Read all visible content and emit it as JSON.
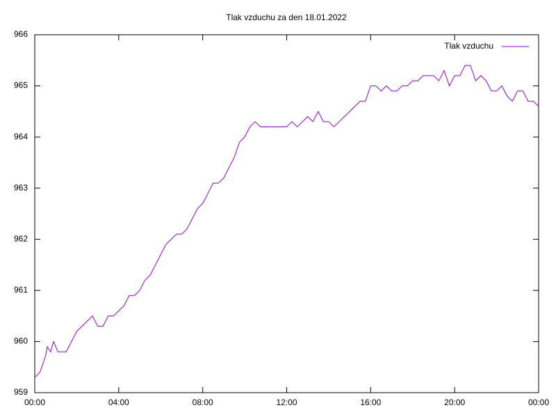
{
  "chart_data": {
    "type": "line",
    "title": "Tlak vzduchu za den 18.01.2022",
    "x": [
      0,
      0.25,
      0.5,
      0.6,
      0.75,
      0.9,
      1,
      1.1,
      1.25,
      1.5,
      1.75,
      2,
      2.25,
      2.5,
      2.75,
      3,
      3.25,
      3.5,
      3.75,
      4,
      4.25,
      4.5,
      4.75,
      5,
      5.25,
      5.5,
      5.75,
      6,
      6.25,
      6.5,
      6.75,
      7,
      7.25,
      7.5,
      7.75,
      8,
      8.25,
      8.5,
      8.75,
      9,
      9.25,
      9.5,
      9.75,
      10,
      10.25,
      10.5,
      10.75,
      11,
      11.25,
      11.5,
      11.75,
      12,
      12.25,
      12.5,
      12.75,
      13,
      13.25,
      13.5,
      13.75,
      14,
      14.25,
      14.5,
      14.75,
      15,
      15.25,
      15.5,
      15.75,
      16,
      16.25,
      16.5,
      16.75,
      17,
      17.25,
      17.5,
      17.75,
      18,
      18.25,
      18.5,
      18.75,
      19,
      19.25,
      19.5,
      19.75,
      20,
      20.25,
      20.5,
      20.75,
      21,
      21.25,
      21.5,
      21.75,
      22,
      22.25,
      22.5,
      22.75,
      23,
      23.25,
      23.5,
      23.75,
      24
    ],
    "series": [
      {
        "name": "Tlak vzduchu",
        "color": "#9400d3",
        "values": [
          959.3,
          959.4,
          959.7,
          959.9,
          959.8,
          960.0,
          959.9,
          959.8,
          959.8,
          959.8,
          960.0,
          960.2,
          960.3,
          960.4,
          960.5,
          960.3,
          960.3,
          960.5,
          960.5,
          960.6,
          960.7,
          960.9,
          960.9,
          961.0,
          961.2,
          961.3,
          961.5,
          961.7,
          961.9,
          962.0,
          962.1,
          962.1,
          962.2,
          962.4,
          962.6,
          962.7,
          962.9,
          963.1,
          963.1,
          963.2,
          963.4,
          963.6,
          963.9,
          964.0,
          964.2,
          964.3,
          964.2,
          964.2,
          964.2,
          964.2,
          964.2,
          964.2,
          964.3,
          964.2,
          964.3,
          964.4,
          964.3,
          964.5,
          964.3,
          964.3,
          964.2,
          964.3,
          964.4,
          964.5,
          964.6,
          964.7,
          964.7,
          965.0,
          965.0,
          964.9,
          965.0,
          964.9,
          964.9,
          965.0,
          965.0,
          965.1,
          965.1,
          965.2,
          965.2,
          965.2,
          965.1,
          965.3,
          965.0,
          965.2,
          965.2,
          965.4,
          965.4,
          965.1,
          965.2,
          965.1,
          964.9,
          964.9,
          965.0,
          964.8,
          964.7,
          964.9,
          964.9,
          964.7,
          964.7,
          964.6
        ]
      }
    ],
    "xlim": [
      0,
      24
    ],
    "xticks": [
      {
        "value": 0,
        "label": "00:00"
      },
      {
        "value": 4,
        "label": "04:00"
      },
      {
        "value": 8,
        "label": "08:00"
      },
      {
        "value": 12,
        "label": "12:00"
      },
      {
        "value": 16,
        "label": "16:00"
      },
      {
        "value": 20,
        "label": "20:00"
      },
      {
        "value": 24,
        "label": "00:00"
      }
    ],
    "ylim": [
      959,
      966
    ],
    "yticks": [
      959,
      960,
      961,
      962,
      963,
      964,
      965,
      966
    ],
    "legend": "top-right"
  }
}
